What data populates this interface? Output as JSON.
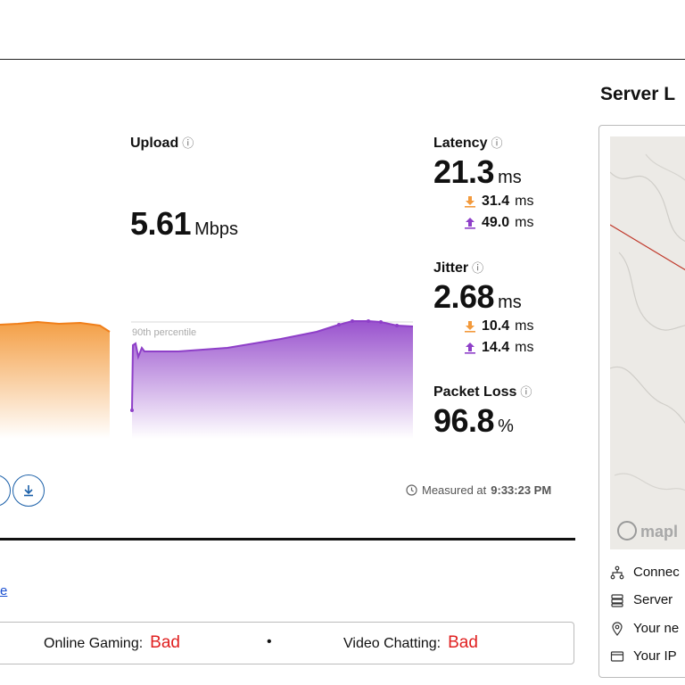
{
  "upload": {
    "label": "Upload",
    "value": "5.61",
    "unit": "Mbps",
    "percentile_label": "90th percentile"
  },
  "latency": {
    "label": "Latency",
    "value": "21.3",
    "unit": "ms",
    "download": "31.4",
    "upload": "49.0",
    "sub_unit": "ms"
  },
  "jitter": {
    "label": "Jitter",
    "value": "2.68",
    "unit": "ms",
    "download": "10.4",
    "upload": "14.4",
    "sub_unit": "ms"
  },
  "packet_loss": {
    "label": "Packet Loss",
    "value": "96.8",
    "unit": "%"
  },
  "measured": {
    "prefix": "Measured at",
    "time": "9:33:23 PM"
  },
  "link_text": "e",
  "quality": {
    "gaming_label": "Online Gaming:",
    "gaming_value": "Bad",
    "separator": "•",
    "video_label": "Video Chatting:",
    "video_value": "Bad"
  },
  "server": {
    "title": "Server L",
    "map_attribution": "mapl",
    "legend": [
      {
        "icon": "network-icon",
        "label": "Connec"
      },
      {
        "icon": "server-icon",
        "label": "Server"
      },
      {
        "icon": "location-pin-icon",
        "label": "Your ne"
      },
      {
        "icon": "ip-card-icon",
        "label": "Your IP"
      }
    ]
  },
  "colors": {
    "download": "#f39a3c",
    "upload": "#8e3fc8",
    "bad": "#e02020",
    "link": "#1a4fd0"
  }
}
